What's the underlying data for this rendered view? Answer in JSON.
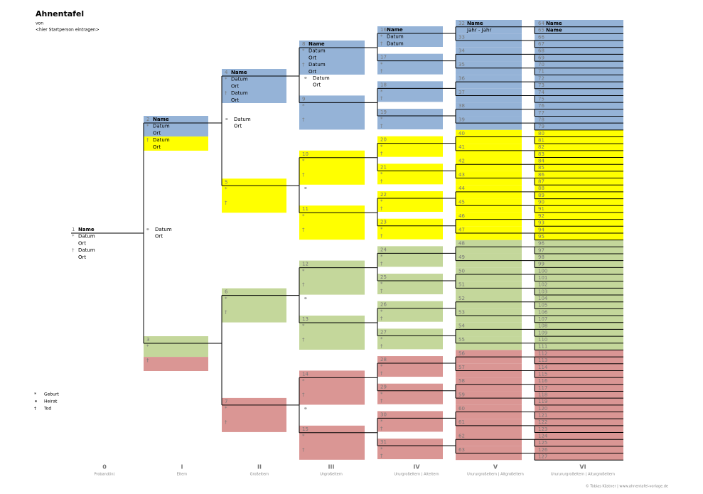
{
  "header": {
    "title": "Ahnentafel",
    "subtitle": "von",
    "person": "<hier Startperson eintragen>"
  },
  "colors": [
    "#95b3d7",
    "#ffff00",
    "#c4d79b",
    "#da9694"
  ],
  "persons": [
    {
      "num": "1",
      "name": "Name",
      "rows": [
        {
          "mark": "*",
          "text": "Datum"
        },
        {
          "text": "Ort"
        },
        {
          "mark": "†",
          "text": "Datum"
        },
        {
          "text": "Ort"
        }
      ]
    },
    {
      "num": "2",
      "name": "Name",
      "rows": [
        {
          "mark": "*",
          "text": "Datum"
        },
        {
          "text": "Ort"
        },
        {
          "mark": "†",
          "text": "Datum"
        },
        {
          "text": "Ort"
        }
      ]
    },
    {
      "num": "3",
      "rows": [
        {
          "mark": "*"
        },
        null,
        {
          "mark": "†"
        }
      ]
    },
    {
      "num": "4",
      "name": "Name",
      "rows": [
        {
          "mark": "*",
          "text": "Datum"
        },
        {
          "text": "Ort"
        },
        {
          "mark": "†",
          "text": "Datum"
        },
        {
          "text": "Ort"
        }
      ]
    },
    {
      "num": "5",
      "rows": [
        {
          "mark": "*"
        },
        null,
        {
          "mark": "†"
        }
      ]
    },
    {
      "num": "6",
      "rows": [
        {
          "mark": "*"
        },
        null,
        {
          "mark": "†"
        }
      ]
    },
    {
      "num": "7",
      "rows": [
        {
          "mark": "*"
        },
        null,
        {
          "mark": "†"
        }
      ]
    },
    {
      "num": "8",
      "name": "Name",
      "rows": [
        {
          "mark": "*",
          "text": "Datum"
        },
        {
          "text": "Ort"
        },
        {
          "mark": "†",
          "text": "Datum"
        },
        {
          "text": "Ort"
        }
      ]
    },
    {
      "num": "9",
      "rows": [
        {
          "mark": "*"
        },
        null,
        {
          "mark": "†"
        }
      ]
    },
    {
      "num": "10",
      "rows": [
        {
          "mark": "*"
        },
        null,
        {
          "mark": "†"
        }
      ]
    },
    {
      "num": "11",
      "rows": [
        {
          "mark": "*"
        },
        null,
        {
          "mark": "†"
        }
      ]
    },
    {
      "num": "12",
      "rows": [
        {
          "mark": "*"
        },
        null,
        {
          "mark": "†"
        }
      ]
    },
    {
      "num": "13",
      "rows": [
        {
          "mark": "*"
        },
        null,
        {
          "mark": "†"
        }
      ]
    },
    {
      "num": "14",
      "rows": [
        {
          "mark": "*"
        },
        null,
        {
          "mark": "†"
        }
      ]
    },
    {
      "num": "15",
      "rows": [
        {
          "mark": "*"
        },
        null,
        {
          "mark": "†"
        }
      ]
    },
    {
      "num": "16",
      "name": "Name",
      "rows": [
        {
          "mark": "*",
          "text": "Datum"
        },
        {
          "mark": "†",
          "text": "Datum"
        }
      ]
    },
    {
      "num": "17",
      "rows": [
        {
          "mark": "*"
        },
        {
          "mark": "†"
        }
      ]
    },
    {
      "num": "18",
      "rows": [
        {
          "mark": "*"
        },
        {
          "mark": "†"
        }
      ]
    },
    {
      "num": "19",
      "rows": [
        {
          "mark": "*"
        },
        {
          "mark": "†"
        }
      ]
    },
    {
      "num": "20",
      "rows": [
        {
          "mark": "*"
        },
        {
          "mark": "†"
        }
      ]
    },
    {
      "num": "21",
      "rows": [
        {
          "mark": "*"
        },
        {
          "mark": "†"
        }
      ]
    },
    {
      "num": "22",
      "rows": [
        {
          "mark": "*"
        },
        {
          "mark": "†"
        }
      ]
    },
    {
      "num": "23",
      "rows": [
        {
          "mark": "*"
        },
        {
          "mark": "†"
        }
      ]
    },
    {
      "num": "24",
      "rows": [
        {
          "mark": "*"
        },
        {
          "mark": "†"
        }
      ]
    },
    {
      "num": "25",
      "rows": [
        {
          "mark": "*"
        },
        {
          "mark": "†"
        }
      ]
    },
    {
      "num": "26",
      "rows": [
        {
          "mark": "*"
        },
        {
          "mark": "†"
        }
      ]
    },
    {
      "num": "27",
      "rows": [
        {
          "mark": "*"
        },
        {
          "mark": "†"
        }
      ]
    },
    {
      "num": "28",
      "rows": [
        {
          "mark": "*"
        },
        {
          "mark": "†"
        }
      ]
    },
    {
      "num": "29",
      "rows": [
        {
          "mark": "*"
        },
        {
          "mark": "†"
        }
      ]
    },
    {
      "num": "30",
      "rows": [
        {
          "mark": "*"
        },
        {
          "mark": "†"
        }
      ]
    },
    {
      "num": "31",
      "rows": [
        {
          "mark": "*"
        },
        {
          "mark": "†"
        }
      ]
    },
    {
      "num": "32",
      "name": "Name",
      "rows": [
        {
          "text": "Jahr - Jahr"
        }
      ]
    },
    {
      "num": "33"
    },
    {
      "num": "34"
    },
    {
      "num": "35"
    },
    {
      "num": "36"
    },
    {
      "num": "37"
    },
    {
      "num": "38"
    },
    {
      "num": "39"
    },
    {
      "num": "40"
    },
    {
      "num": "41"
    },
    {
      "num": "42"
    },
    {
      "num": "43"
    },
    {
      "num": "44"
    },
    {
      "num": "45"
    },
    {
      "num": "46"
    },
    {
      "num": "47"
    },
    {
      "num": "48"
    },
    {
      "num": "49"
    },
    {
      "num": "50"
    },
    {
      "num": "51"
    },
    {
      "num": "52"
    },
    {
      "num": "53"
    },
    {
      "num": "54"
    },
    {
      "num": "55"
    },
    {
      "num": "56"
    },
    {
      "num": "57"
    },
    {
      "num": "58"
    },
    {
      "num": "59"
    },
    {
      "num": "60"
    },
    {
      "num": "61"
    },
    {
      "num": "62"
    },
    {
      "num": "63"
    },
    {
      "num": "64",
      "name": "Name"
    },
    {
      "num": "65",
      "name": "Name"
    },
    {
      "num": "66"
    },
    {
      "num": "67"
    },
    {
      "num": "68"
    },
    {
      "num": "69"
    },
    {
      "num": "70"
    },
    {
      "num": "71"
    },
    {
      "num": "72"
    },
    {
      "num": "73"
    },
    {
      "num": "74"
    },
    {
      "num": "75"
    },
    {
      "num": "76"
    },
    {
      "num": "77"
    },
    {
      "num": "78"
    },
    {
      "num": "79"
    },
    {
      "num": "80"
    },
    {
      "num": "81"
    },
    {
      "num": "82"
    },
    {
      "num": "83"
    },
    {
      "num": "84"
    },
    {
      "num": "85"
    },
    {
      "num": "86"
    },
    {
      "num": "87"
    },
    {
      "num": "88"
    },
    {
      "num": "89"
    },
    {
      "num": "90"
    },
    {
      "num": "91"
    },
    {
      "num": "92"
    },
    {
      "num": "93"
    },
    {
      "num": "94"
    },
    {
      "num": "95"
    },
    {
      "num": "96"
    },
    {
      "num": "97"
    },
    {
      "num": "98"
    },
    {
      "num": "99"
    },
    {
      "num": "100"
    },
    {
      "num": "101"
    },
    {
      "num": "102"
    },
    {
      "num": "103"
    },
    {
      "num": "104"
    },
    {
      "num": "105"
    },
    {
      "num": "106"
    },
    {
      "num": "107"
    },
    {
      "num": "108"
    },
    {
      "num": "109"
    },
    {
      "num": "110"
    },
    {
      "num": "111"
    },
    {
      "num": "112"
    },
    {
      "num": "113"
    },
    {
      "num": "114"
    },
    {
      "num": "115"
    },
    {
      "num": "116"
    },
    {
      "num": "117"
    },
    {
      "num": "118"
    },
    {
      "num": "119"
    },
    {
      "num": "120"
    },
    {
      "num": "121"
    },
    {
      "num": "122"
    },
    {
      "num": "123"
    },
    {
      "num": "124"
    },
    {
      "num": "125"
    },
    {
      "num": "126"
    },
    {
      "num": "127"
    }
  ],
  "marriages": [
    {
      "mark": "⚭",
      "date": "Datum",
      "place": "Ort"
    },
    {
      "mark": "⚭",
      "date": "Datum",
      "place": "Ort"
    },
    {
      "mark": "⚭",
      "date": "Datum",
      "place": "Ort"
    },
    {
      "mark": "⚭"
    },
    {
      "mark": "⚭"
    },
    {
      "mark": "⚭"
    }
  ],
  "legend": [
    {
      "mark": "*",
      "text": "Geburt"
    },
    {
      "mark": "⚭",
      "text": "Heirat"
    },
    {
      "mark": "†",
      "text": "Tod"
    }
  ],
  "columns": [
    {
      "num": "0",
      "label": "Proband(in)"
    },
    {
      "num": "I",
      "label": "Eltern"
    },
    {
      "num": "II",
      "label": "Großeltern"
    },
    {
      "num": "III",
      "label": "Urgroßeltern"
    },
    {
      "num": "IV",
      "label": "Ururgroßeltern | Alteltern"
    },
    {
      "num": "V",
      "label": "Urururgroßeltern | Altgroßeltern"
    },
    {
      "num": "VI",
      "label": "Ururururgroßeltern | Alturgroßeltern"
    }
  ],
  "footer": "© Tobias Kästner | www.ahnentafel-vorlage.de"
}
